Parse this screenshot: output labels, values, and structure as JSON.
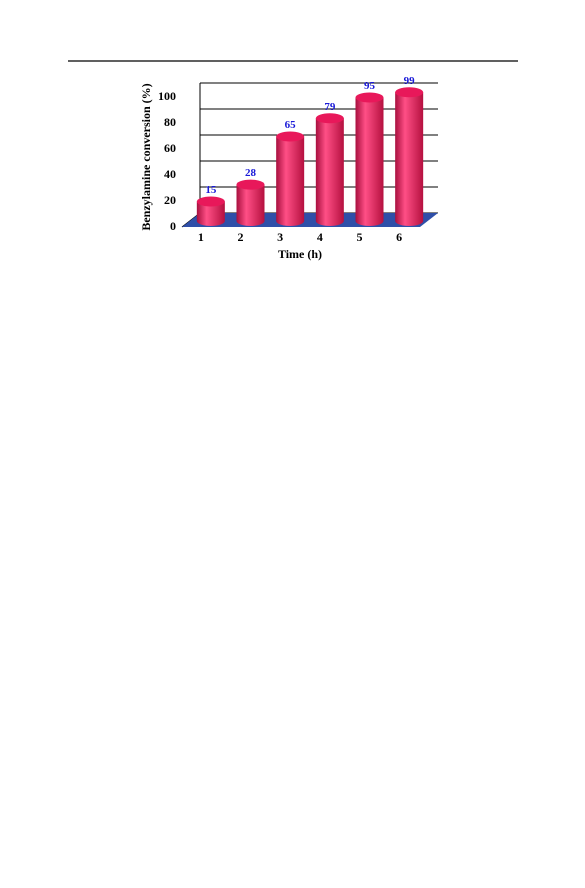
{
  "chart_data": {
    "type": "bar3d",
    "xlabel": "Time (h)",
    "ylabel": "Benzylamine conversion (%)",
    "categories": [
      "1",
      "2",
      "3",
      "4",
      "5",
      "6"
    ],
    "values": [
      15,
      28,
      65,
      79,
      95,
      99
    ],
    "color": "#e8185a",
    "value_label_color": "#1a1ad8",
    "floor_color": "#2f4fa8",
    "ylim": [
      0,
      100
    ],
    "yticks": [
      0,
      20,
      40,
      60,
      80,
      100
    ],
    "grid": true
  }
}
